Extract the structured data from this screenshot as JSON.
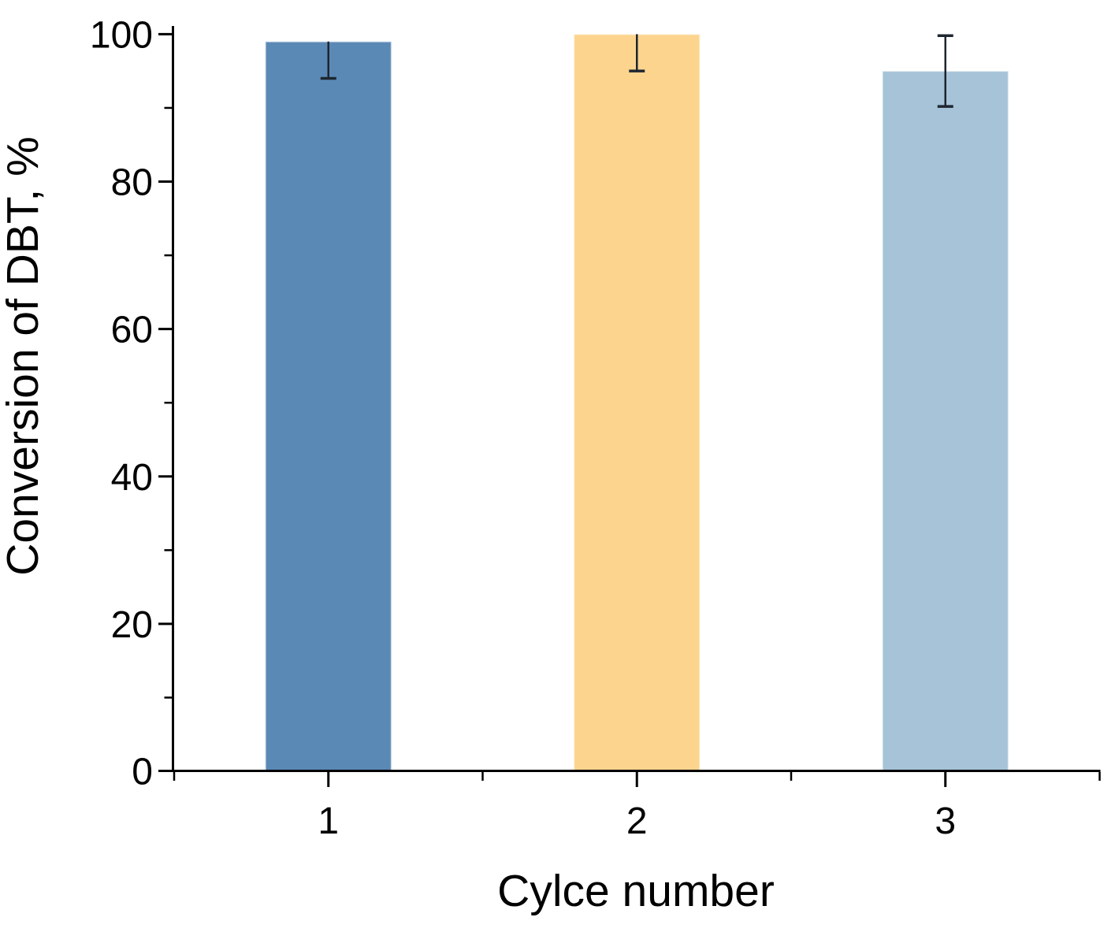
{
  "figure": {
    "background": "#ffffff",
    "title": ""
  },
  "chart_data": {
    "type": "bar",
    "title": "",
    "xlabel": "Cylce number",
    "ylabel": "Conversion of DBT, %",
    "categories": [
      "1",
      "2",
      "3"
    ],
    "values": [
      99,
      100,
      95
    ],
    "errors": [
      {
        "low": 94,
        "high": 99,
        "cap_top": false,
        "cap_bottom": true
      },
      {
        "low": 95,
        "high": 100,
        "cap_top": false,
        "cap_bottom": true
      },
      {
        "low": 90.2,
        "high": 99.8,
        "cap_top": true,
        "cap_bottom": true
      }
    ],
    "bar_colors": [
      "#5B89B5",
      "#FCD48E",
      "#A6C3D8"
    ],
    "error_color": "#1E2630",
    "axis_color": "#000000",
    "text_color": "#000000",
    "ylim": [
      0,
      100
    ],
    "yticks_major": [
      0,
      20,
      40,
      60,
      80,
      100
    ],
    "yticks_minor": [
      10,
      30,
      50,
      70,
      90
    ],
    "xticks_minor_positions": [
      0.5,
      1.5,
      2.5,
      3.5
    ],
    "grid": false,
    "legend": null
  }
}
